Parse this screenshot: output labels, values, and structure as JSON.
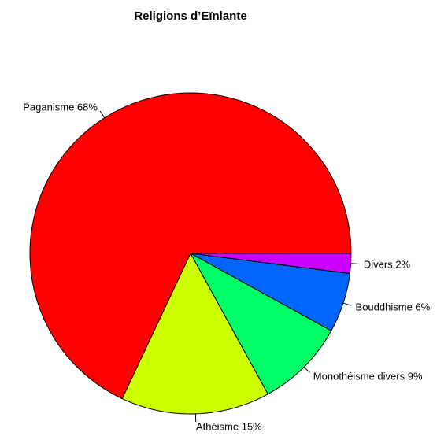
{
  "chart_data": {
    "type": "pie",
    "title": "Religions d’Eïnlante",
    "direction": "clockwise",
    "start": "east",
    "slices": [
      {
        "label": "Divers 2%",
        "value": 2,
        "color": "#CC00FF"
      },
      {
        "label": "Bouddhisme 6%",
        "value": 6,
        "color": "#0066FF"
      },
      {
        "label": "Monothéisme divers 9%",
        "value": 9,
        "color": "#00FF66"
      },
      {
        "label": "Athéisme 15%",
        "value": 15,
        "color": "#CCFF00"
      },
      {
        "label": "Paganisme 68%",
        "value": 68,
        "color": "#FF0000"
      }
    ]
  }
}
